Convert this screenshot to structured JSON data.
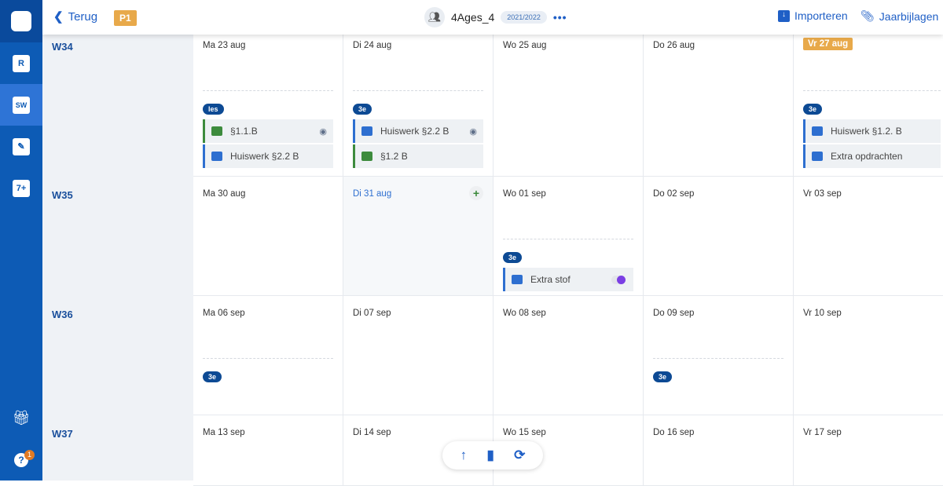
{
  "header": {
    "back_label": "Terug",
    "period": "P1",
    "class_name": "4Ages_4",
    "school_year": "2021/2022",
    "more": "•••",
    "import_label": "Importeren",
    "attachments_label": "Jaarbijlagen"
  },
  "sidebar": {
    "items": [
      {
        "label": "R"
      },
      {
        "label": "SW"
      },
      {
        "label": "✎"
      },
      {
        "label": "7+"
      }
    ],
    "help_badge": "1"
  },
  "weeks": [
    {
      "label": "W34",
      "days": [
        {
          "date": "Ma 23 aug",
          "tag": "les",
          "items": [
            {
              "type": "les",
              "label": "§1.1.B",
              "eye": true
            },
            {
              "type": "hw",
              "label": "Huiswerk §2.2 B"
            }
          ]
        },
        {
          "date": "Di 24 aug",
          "tag": "3e",
          "items": [
            {
              "type": "hw",
              "label": "Huiswerk §2.2 B",
              "eye": true
            },
            {
              "type": "les",
              "label": "§1.2 B"
            }
          ]
        },
        {
          "date": "Wo 25 aug"
        },
        {
          "date": "Do 26 aug"
        },
        {
          "date": "Vr 27 aug",
          "today": true,
          "tag": "3e",
          "items": [
            {
              "type": "hw",
              "label": "Huiswerk §1.2. B"
            },
            {
              "type": "hw",
              "label": "Extra opdrachten"
            }
          ]
        }
      ]
    },
    {
      "label": "W35",
      "days": [
        {
          "date": "Ma 30 aug"
        },
        {
          "date": "Di 31 aug",
          "selected": true
        },
        {
          "date": "Wo 01 sep",
          "tag": "3e",
          "items": [
            {
              "type": "hw",
              "label": "Extra stof",
              "toggle": true
            }
          ]
        },
        {
          "date": "Do 02 sep"
        },
        {
          "date": "Vr 03 sep"
        }
      ]
    },
    {
      "label": "W36",
      "days": [
        {
          "date": "Ma 06 sep",
          "tag": "3e"
        },
        {
          "date": "Di 07 sep"
        },
        {
          "date": "Wo 08 sep"
        },
        {
          "date": "Do 09 sep",
          "tag": "3e"
        },
        {
          "date": "Vr 10 sep"
        }
      ]
    },
    {
      "label": "W37",
      "days": [
        {
          "date": "Ma 13 sep"
        },
        {
          "date": "Di 14 sep"
        },
        {
          "date": "Wo 15 sep"
        },
        {
          "date": "Do 16 sep"
        },
        {
          "date": "Vr 17 sep"
        }
      ]
    }
  ],
  "fab": {
    "up": "↑",
    "stats": "▮",
    "refresh": "⟳"
  }
}
